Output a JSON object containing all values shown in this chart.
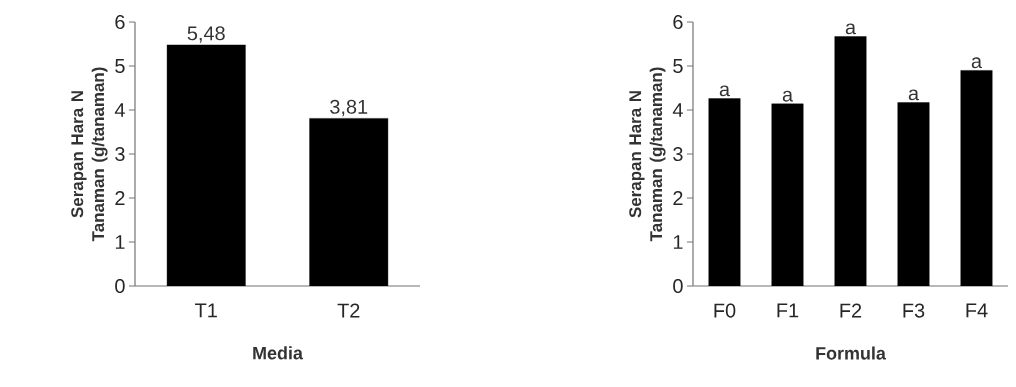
{
  "chart_data": [
    {
      "type": "bar",
      "xlabel": "Media",
      "ylabel": "Serapan Hara N Tanaman (g/tanaman)",
      "categories": [
        "T1",
        "T2"
      ],
      "values": [
        5.48,
        3.81
      ],
      "value_labels": [
        "5,48",
        "3,81"
      ],
      "color": "#000000",
      "ylim": [
        0,
        6
      ],
      "yticks": [
        0,
        1,
        2,
        3,
        4,
        5,
        6
      ]
    },
    {
      "type": "bar",
      "xlabel": "Formula",
      "ylabel": "Serapan Hara N Tanaman (g/tanaman)",
      "categories": [
        "F0",
        "F1",
        "F2",
        "F3",
        "F4"
      ],
      "values": [
        4.26,
        4.14,
        5.67,
        4.17,
        4.9
      ],
      "color": "#000000",
      "ylim": [
        0,
        6
      ],
      "yticks": [
        0,
        1,
        2,
        3,
        4,
        5,
        6
      ],
      "annotations": [
        {
          "text": "a",
          "x": "F0",
          "y": 4.26
        },
        {
          "text": "a",
          "x": "F1",
          "y": 4.14
        },
        {
          "text": "a",
          "x": "F2",
          "y": 5.67
        },
        {
          "text": "a",
          "x": "F3",
          "y": 4.17
        },
        {
          "text": "a",
          "x": "F4",
          "y": 4.9
        }
      ]
    }
  ]
}
